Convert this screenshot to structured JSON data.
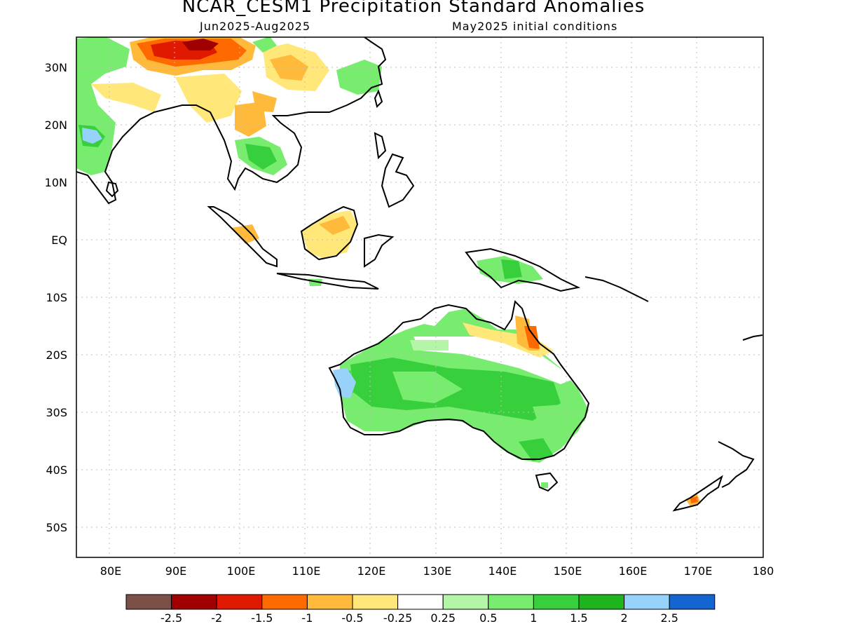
{
  "title": "NCAR_CESM1 Precipitation Standard Anomalies",
  "period": "Jun2025-Aug2025",
  "init": "May2025 initial conditions",
  "lat_labels": [
    "30N",
    "20N",
    "10N",
    "EQ",
    "10S",
    "20S",
    "30S",
    "40S",
    "50S"
  ],
  "lon_labels": [
    "80E",
    "90E",
    "100E",
    "110E",
    "120E",
    "130E",
    "140E",
    "150E",
    "160E",
    "170E",
    "180"
  ],
  "legend": {
    "colors": [
      "#7a5047",
      "#a00000",
      "#e01a00",
      "#ff6a00",
      "#ffba3c",
      "#ffe77a",
      "#ffffff",
      "#b4f5a8",
      "#78ec6e",
      "#37d03c",
      "#1eb41e",
      "#96d2fa",
      "#1464d2"
    ],
    "labels": [
      "-2.5",
      "-2",
      "-1.5",
      "-1",
      "-0.5",
      "-0.25",
      "0.25",
      "0.5",
      "1",
      "1.5",
      "2",
      "2.5"
    ]
  }
}
